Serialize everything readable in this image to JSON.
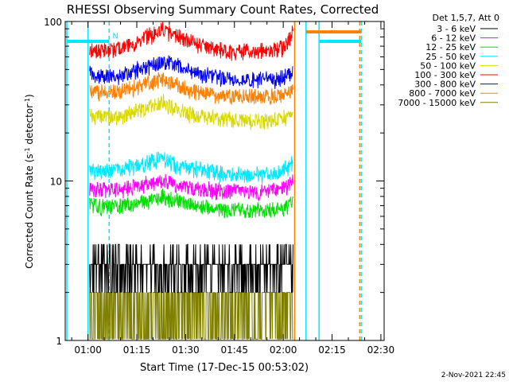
{
  "chart_data": {
    "type": "line",
    "title": "RHESSI Observing Summary Count Rates, Corrected",
    "xlabel": "Start Time (17-Dec-15 00:53:02)",
    "ylabel_main": "Corrected Count Rate (s",
    "ylabel_sup1": "-1",
    "ylabel_mid": " detector",
    "ylabel_sup2": "-1",
    "ylabel_end": ")",
    "yscale": "log",
    "ylim": [
      1,
      100
    ],
    "xlim_minutes": [
      53.0,
      151.0
    ],
    "x_ticks": [
      {
        "label": "01:00",
        "minute": 60
      },
      {
        "label": "01:15",
        "minute": 75
      },
      {
        "label": "01:30",
        "minute": 90
      },
      {
        "label": "01:45",
        "minute": 105
      },
      {
        "label": "02:00",
        "minute": 120
      },
      {
        "label": "02:15",
        "minute": 135
      },
      {
        "label": "02:30",
        "minute": 150
      }
    ],
    "y_ticks": [
      {
        "label": "1",
        "value": 1
      },
      {
        "label": "10",
        "value": 10
      },
      {
        "label": "100",
        "value": 100
      }
    ],
    "legend": {
      "header": "Det 1,5,7, Att 0",
      "position": "top-right",
      "entries": [
        {
          "label": "3 - 6 keV",
          "color": "#000000"
        },
        {
          "label": "6 - 12 keV",
          "color": "#ff00ff"
        },
        {
          "label": "12 - 25 keV",
          "color": "#00e000"
        },
        {
          "label": "25 - 50 keV",
          "color": "#00e8ff"
        },
        {
          "label": "50 - 100 keV",
          "color": "#d8d800"
        },
        {
          "label": "100 - 300 keV",
          "color": "#ff0000"
        },
        {
          "label": "300 - 800 keV",
          "color": "#0000ff"
        },
        {
          "label": "800 - 7000 keV",
          "color": "#ff8000"
        },
        {
          "label": "7000 - 15000 keV",
          "color": "#808000"
        }
      ]
    },
    "data_window_minutes": [
      60.5,
      123.0
    ],
    "series": [
      {
        "color": "#ff0000",
        "x": [
          60.5,
          66,
          72,
          78,
          83,
          87,
          92,
          98,
          104,
          110,
          116,
          121,
          123
        ],
        "y": [
          68,
          65,
          70,
          80,
          88,
          82,
          74,
          68,
          65,
          65,
          66,
          70,
          90
        ]
      },
      {
        "color": "#0000ff",
        "x": [
          60.5,
          66,
          72,
          78,
          83,
          87,
          92,
          98,
          104,
          110,
          116,
          121,
          123
        ],
        "y": [
          47,
          45,
          47,
          52,
          56,
          53,
          49,
          45,
          43,
          43,
          43,
          45,
          48
        ]
      },
      {
        "color": "#ff8000",
        "x": [
          60.5,
          66,
          72,
          78,
          83,
          87,
          92,
          98,
          104,
          110,
          116,
          121,
          123
        ],
        "y": [
          37,
          35,
          37,
          41,
          43,
          40,
          37,
          35,
          34,
          34,
          34,
          35,
          37
        ]
      },
      {
        "color": "#d8d800",
        "x": [
          60.5,
          66,
          72,
          78,
          83,
          87,
          92,
          98,
          104,
          110,
          116,
          121,
          123
        ],
        "y": [
          26,
          25,
          26,
          29,
          31,
          28,
          26,
          25,
          24,
          24,
          24,
          25,
          27
        ]
      },
      {
        "color": "#00e8ff",
        "x": [
          60.5,
          66,
          72,
          78,
          83,
          87,
          92,
          98,
          104,
          110,
          116,
          121,
          123
        ],
        "y": [
          11.5,
          11.5,
          12,
          13,
          14,
          12.5,
          12,
          11.5,
          11,
          11,
          11,
          12,
          13
        ]
      },
      {
        "color": "#ff00ff",
        "x": [
          60.5,
          66,
          72,
          78,
          83,
          87,
          92,
          98,
          104,
          110,
          116,
          121,
          123
        ],
        "y": [
          9,
          8.8,
          9,
          9.5,
          10,
          9.5,
          9,
          8.8,
          8.6,
          8.6,
          8.6,
          9,
          10
        ]
      },
      {
        "color": "#00e000",
        "x": [
          60.5,
          66,
          72,
          78,
          83,
          87,
          92,
          98,
          104,
          110,
          116,
          121,
          123
        ],
        "y": [
          7,
          6.8,
          7,
          7.5,
          8,
          7.5,
          7,
          6.8,
          6.5,
          6.5,
          6.5,
          6.8,
          7.5
        ]
      },
      {
        "color": "#000000",
        "x": [
          60.5,
          66,
          72,
          78,
          83,
          87,
          92,
          98,
          104,
          110,
          116,
          121,
          123
        ],
        "y": [
          2.8,
          2.6,
          2.8,
          3.0,
          2.7,
          2.6,
          2.8,
          2.7,
          2.8,
          2.8,
          2.7,
          2.8,
          2.8
        ]
      },
      {
        "color": "#808000",
        "x": [
          60.5,
          66,
          72,
          78,
          83,
          87,
          92,
          98,
          104,
          110,
          116,
          121,
          123
        ],
        "y": [
          1.6,
          1.5,
          1.6,
          1.7,
          1.5,
          1.5,
          1.6,
          1.5,
          1.6,
          1.6,
          1.5,
          1.6,
          1.6
        ]
      }
    ],
    "flag_lines": [
      {
        "color": "#00e8ff",
        "x": 53.5,
        "style": "solid"
      },
      {
        "color": "#00e8ff",
        "x": 60.0,
        "style": "solid"
      },
      {
        "color": "#00e8ff",
        "x": 66.5,
        "style": "dashed"
      },
      {
        "color": "#ff8000",
        "x": 123.5,
        "style": "solid"
      },
      {
        "color": "#00e8ff",
        "x": 127.0,
        "style": "solid"
      },
      {
        "color": "#00e8ff",
        "x": 131.0,
        "style": "solid"
      },
      {
        "color": "#ff8000",
        "x": 143.5,
        "style": "dashed"
      },
      {
        "color": "#00e8ff",
        "x": 144.0,
        "style": "dashed"
      }
    ],
    "flag_bars": [
      {
        "color": "#00e8ff",
        "x": [
          53.5,
          66.5
        ],
        "y": 75
      },
      {
        "color": "#ff8000",
        "x": [
          127.0,
          144.0
        ],
        "y": 86
      },
      {
        "color": "#00e8ff",
        "x": [
          131.0,
          144.0
        ],
        "y": 75
      }
    ],
    "flag_label": {
      "text": "N",
      "color": "#00e8ff",
      "x": 67.5,
      "y": 78
    },
    "timestamp": "2-Nov-2021 22:45"
  }
}
